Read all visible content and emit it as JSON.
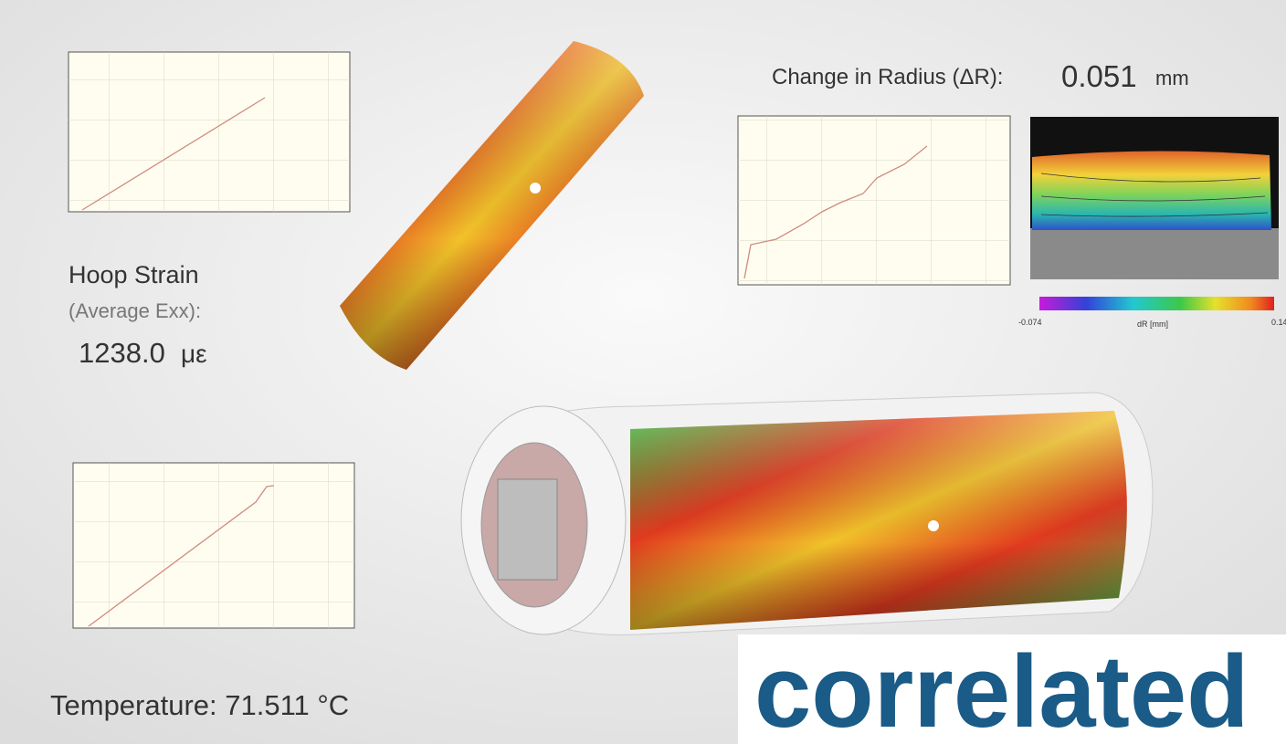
{
  "radius": {
    "label": "Change in Radius (ΔR):",
    "value": "0.051",
    "unit": "mm"
  },
  "hoop": {
    "title": "Hoop Strain",
    "subtitle": "(Average Exx):",
    "value": "1238.0",
    "unit": "με"
  },
  "temperature": "Temperature: 71.511 °C",
  "colorbar": {
    "min": "-0.074",
    "label": "dR [mm]",
    "max": "0.14"
  },
  "logo": "correlated"
}
